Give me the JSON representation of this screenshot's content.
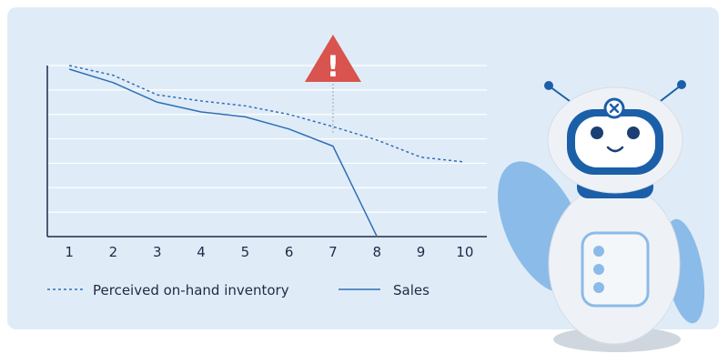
{
  "colors": {
    "background": "#dfecf8",
    "line": "#2f6fb5",
    "grid": "#ffffff",
    "axis": "#1f2a44",
    "warning": "#d9534f",
    "robot_light": "#e8eef5",
    "robot_wing": "#8bbbe8",
    "robot_face": "#1b5fa8"
  },
  "icons": {
    "warning": "warning-triangle-icon",
    "robot": "robot-mascot-illustration"
  },
  "warning": {
    "glyph": "!",
    "x": 7
  },
  "chart_data": {
    "type": "line",
    "x": [
      1,
      2,
      3,
      4,
      5,
      6,
      7,
      8,
      9,
      10
    ],
    "ylim": [
      0,
      7
    ],
    "grid": true,
    "legend": "bottom",
    "series": [
      {
        "name": "Perceived on-hand inventory",
        "style": "dashed",
        "x": [
          1,
          2,
          3,
          4,
          5,
          6,
          7,
          8,
          9,
          10
        ],
        "values": [
          7.0,
          6.6,
          5.8,
          5.55,
          5.35,
          5.0,
          4.5,
          3.95,
          3.25,
          3.05
        ]
      },
      {
        "name": "Sales",
        "style": "solid",
        "x": [
          1,
          2,
          3,
          4,
          5,
          6,
          7,
          8
        ],
        "values": [
          6.85,
          6.3,
          5.5,
          5.1,
          4.9,
          4.4,
          3.7,
          0
        ]
      }
    ]
  }
}
